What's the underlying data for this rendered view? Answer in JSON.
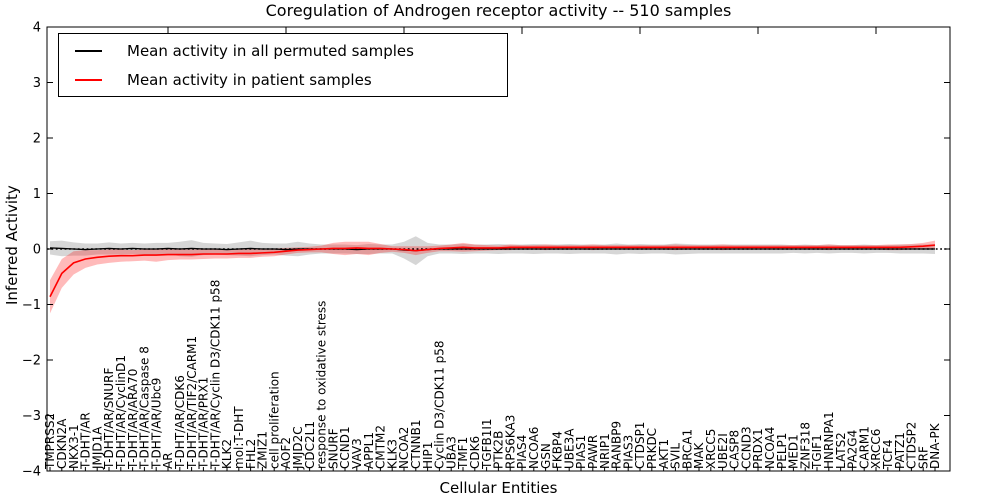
{
  "chart_data": {
    "type": "line",
    "title": "Coregulation of Androgen receptor activity -- 510 samples",
    "xlabel": "Cellular Entities",
    "ylabel": "Inferred Activity",
    "ylim": [
      -4,
      4
    ],
    "yticks": [
      -4,
      -3,
      -2,
      -1,
      0,
      1,
      2,
      3,
      4
    ],
    "grid": false,
    "zero_line_style": "dotted",
    "legend_position": "upper left",
    "x_tick_label_rotation": 90,
    "categories": [
      "TMPRSS2",
      "CDKN2A",
      "NKX3-1",
      "T-DHT/AR",
      "JMJD1A",
      "T-DHT/AR/SNURF",
      "T-DHT/AR/CyclinD1",
      "T-DHT/AR/ARA70",
      "T-DHT/AR/Caspase 8",
      "T-DHT/AR/Ubc9",
      "AR",
      "T-DHT/AR/CDK6",
      "T-DHT/AR/TIF2/CARM1",
      "T-DHT/AR/PRX1",
      "T-DHT/AR/Cyclin D3/CDK11 p58",
      "KLK2",
      "mol:T-DHT",
      "FHL2",
      "ZMIZ1",
      "cell proliferation",
      "AOF2",
      "JMJD2C",
      "CDC2L1",
      "response to oxidative stress",
      "SNURF",
      "CCND1",
      "VAV3",
      "APPL1",
      "CMTM2",
      "KLK3",
      "NCOA2",
      "CTNNB1",
      "HIP1",
      "Cyclin D3/CDK11 p58",
      "UBA3",
      "TMF1",
      "CDK6",
      "TGFB1I1",
      "PTK2B",
      "RPS6KA3",
      "PIAS4",
      "NCOA6",
      "GSN",
      "FKBP4",
      "UBE3A",
      "PIAS1",
      "PAWR",
      "NRIP1",
      "RANBP9",
      "PIAS3",
      "CTDSP1",
      "PRKDC",
      "AKT1",
      "SVIL",
      "BRCA1",
      "MAK",
      "XRCC5",
      "UBE2I",
      "CASP8",
      "CCND3",
      "PRDX1",
      "NCOA4",
      "PELP1",
      "MED1",
      "ZNF318",
      "TGIF1",
      "HNRNPA1",
      "LATS2",
      "PA2G4",
      "CARM1",
      "XRCC6",
      "TCF4",
      "PATZ1",
      "CTDSP2",
      "SRF",
      "DNA-PK"
    ],
    "series": [
      {
        "id": "permuted",
        "name": "Mean activity in all permuted samples",
        "color": "#000000",
        "band_color": "rgba(0,0,0,0.16)",
        "values": [
          0.02,
          0.01,
          0,
          -0.01,
          0,
          0.01,
          0,
          0.01,
          0,
          0,
          0.01,
          0,
          0.01,
          0,
          0,
          -0.01,
          0,
          0.01,
          0,
          0,
          -0.01,
          0,
          0,
          0,
          0,
          0,
          -0.01,
          0,
          0,
          0,
          -0.02,
          -0.03,
          -0.01,
          0,
          0,
          0,
          0,
          0,
          0,
          0,
          0,
          0,
          0,
          0,
          0,
          0,
          0,
          0,
          0,
          0,
          0,
          0,
          0,
          0,
          0,
          0,
          0,
          0,
          0,
          0,
          0,
          0,
          0,
          0,
          0,
          0,
          0,
          0,
          0,
          0,
          0,
          0,
          0,
          0,
          0,
          0
        ],
        "band_halfwidth": [
          0.12,
          0.14,
          0.12,
          0.11,
          0.1,
          0.11,
          0.1,
          0.1,
          0.1,
          0.11,
          0.1,
          0.13,
          0.15,
          0.11,
          0.1,
          0.1,
          0.12,
          0.14,
          0.11,
          0.1,
          0.11,
          0.13,
          0.1,
          0.08,
          0.08,
          0.08,
          0.08,
          0.09,
          0.08,
          0.08,
          0.15,
          0.26,
          0.12,
          0.08,
          0.08,
          0.09,
          0.08,
          0.08,
          0.09,
          0.08,
          0.08,
          0.09,
          0.08,
          0.08,
          0.09,
          0.08,
          0.08,
          0.08,
          0.1,
          0.08,
          0.09,
          0.08,
          0.08,
          0.1,
          0.09,
          0.08,
          0.08,
          0.08,
          0.08,
          0.08,
          0.08,
          0.08,
          0.08,
          0.07,
          0.08,
          0.07,
          0.08,
          0.07,
          0.07,
          0.08,
          0.07,
          0.07,
          0.08,
          0.08,
          0.08,
          0.09
        ]
      },
      {
        "id": "patient",
        "name": "Mean activity in patient samples",
        "color": "#ff0000",
        "band_color": "rgba(255,0,0,0.27)",
        "values": [
          -0.86,
          -0.44,
          -0.25,
          -0.18,
          -0.15,
          -0.13,
          -0.12,
          -0.12,
          -0.11,
          -0.11,
          -0.1,
          -0.1,
          -0.1,
          -0.09,
          -0.09,
          -0.09,
          -0.08,
          -0.08,
          -0.07,
          -0.06,
          -0.04,
          -0.02,
          -0.01,
          0,
          0.01,
          0.01,
          0.02,
          0.01,
          0.01,
          0,
          -0.01,
          -0.03,
          -0.01,
          0.01,
          0.02,
          0.03,
          0.02,
          0.02,
          0.02,
          0.03,
          0.03,
          0.03,
          0.03,
          0.03,
          0.03,
          0.03,
          0.03,
          0.03,
          0.03,
          0.03,
          0.03,
          0.03,
          0.03,
          0.03,
          0.03,
          0.03,
          0.03,
          0.03,
          0.03,
          0.03,
          0.03,
          0.03,
          0.03,
          0.03,
          0.03,
          0.03,
          0.03,
          0.03,
          0.03,
          0.03,
          0.03,
          0.03,
          0.03,
          0.04,
          0.05,
          0.07
        ],
        "band_halfwidth": [
          0.3,
          0.26,
          0.21,
          0.16,
          0.13,
          0.12,
          0.11,
          0.1,
          0.1,
          0.12,
          0.1,
          0.09,
          0.09,
          0.09,
          0.08,
          0.08,
          0.08,
          0.08,
          0.07,
          0.07,
          0.06,
          0.05,
          0.05,
          0.06,
          0.1,
          0.12,
          0.11,
          0.12,
          0.08,
          0.05,
          0.06,
          0.08,
          0.06,
          0.05,
          0.06,
          0.08,
          0.06,
          0.05,
          0.04,
          0.05,
          0.04,
          0.04,
          0.05,
          0.04,
          0.04,
          0.04,
          0.05,
          0.04,
          0.04,
          0.04,
          0.04,
          0.04,
          0.04,
          0.05,
          0.04,
          0.04,
          0.04,
          0.05,
          0.04,
          0.04,
          0.04,
          0.04,
          0.04,
          0.04,
          0.04,
          0.04,
          0.05,
          0.04,
          0.04,
          0.04,
          0.04,
          0.05,
          0.05,
          0.05,
          0.06,
          0.08
        ]
      }
    ]
  }
}
